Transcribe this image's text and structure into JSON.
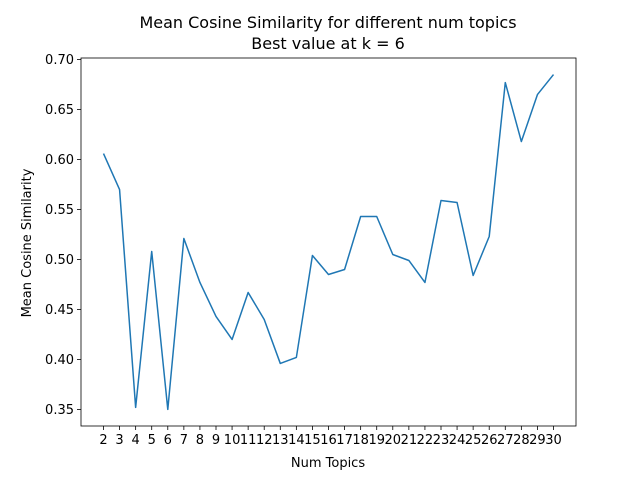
{
  "chart_data": {
    "type": "line",
    "title": "Mean Cosine Similarity for different num topics",
    "subtitle": "Best value at k = 6",
    "xlabel": "Num Topics",
    "ylabel": "Mean Cosine Similarity",
    "x": [
      2,
      3,
      4,
      5,
      6,
      7,
      8,
      9,
      10,
      11,
      12,
      13,
      14,
      15,
      16,
      17,
      18,
      19,
      20,
      21,
      22,
      23,
      24,
      25,
      26,
      27,
      28,
      29,
      30
    ],
    "series": [
      {
        "values": [
          0.606,
          0.57,
          0.352,
          0.508,
          0.35,
          0.521,
          0.477,
          0.443,
          0.42,
          0.467,
          0.44,
          0.396,
          0.402,
          0.504,
          0.485,
          0.49,
          0.543,
          0.543,
          0.505,
          0.499,
          0.477,
          0.559,
          0.557,
          0.484,
          0.523,
          0.677,
          0.618,
          0.665,
          0.685
        ],
        "color": "#1f77b4"
      }
    ],
    "xticks": [
      "2",
      "3",
      "4",
      "5",
      "6",
      "7",
      "8",
      "9",
      "10",
      "11",
      "12",
      "13",
      "14",
      "15",
      "16",
      "17",
      "18",
      "19",
      "20",
      "21",
      "22",
      "23",
      "24",
      "25",
      "26",
      "27",
      "28",
      "29",
      "30"
    ],
    "yticks": [
      "0.35",
      "0.40",
      "0.45",
      "0.50",
      "0.55",
      "0.60",
      "0.65",
      "0.70"
    ],
    "ylim": [
      0.3334,
      0.7016
    ],
    "xlim": [
      0.6,
      31.4
    ],
    "grid": false
  }
}
